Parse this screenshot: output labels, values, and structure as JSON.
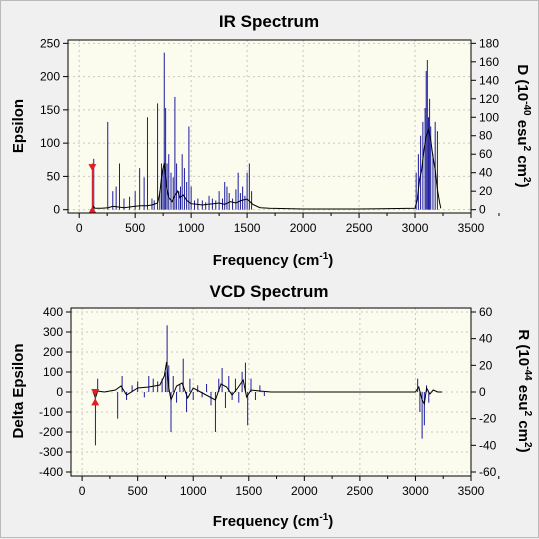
{
  "chart_data": [
    {
      "type": "line",
      "title": "IR Spectrum",
      "xlabel": "Frequency (cm",
      "xlabel_sup": "-1",
      "xlabel_suffix": ")",
      "ylabel": "Epsilon",
      "y2label_parts": [
        "D (10",
        "-40",
        " esu",
        "2",
        " cm",
        "2",
        ")"
      ],
      "xlim": [
        -100,
        3500
      ],
      "ylim": [
        -5,
        255
      ],
      "y2lim": [
        -3.6,
        183.6
      ],
      "xticks": [
        0,
        500,
        1000,
        1500,
        2000,
        2500,
        3000,
        3500
      ],
      "yticks": [
        0,
        50,
        100,
        150,
        200,
        250
      ],
      "y2ticks": [
        0,
        20,
        40,
        60,
        80,
        100,
        120,
        140,
        160,
        180
      ],
      "grid": true,
      "series": [
        {
          "role": "spectrum",
          "color": "#000000",
          "x": [
            100,
            118,
            125,
            132,
            140,
            200,
            260,
            300,
            350,
            400,
            450,
            500,
            550,
            600,
            650,
            700,
            720,
            740,
            760,
            780,
            800,
            830,
            850,
            880,
            900,
            930,
            960,
            1000,
            1050,
            1100,
            1150,
            1200,
            1250,
            1300,
            1350,
            1400,
            1450,
            1500,
            1550,
            1600,
            1620,
            1700,
            2000,
            2500,
            3000,
            3020,
            3040,
            3060,
            3080,
            3100,
            3120,
            3140,
            3160,
            3180,
            3200,
            3220,
            3230
          ],
          "y": [
            0,
            0,
            5,
            4,
            2,
            2,
            3,
            5,
            4,
            3,
            4,
            5,
            6,
            6,
            7,
            10,
            25,
            55,
            70,
            35,
            18,
            12,
            20,
            28,
            18,
            22,
            14,
            9,
            8,
            7,
            8,
            9,
            10,
            8,
            12,
            10,
            14,
            16,
            8,
            4,
            3,
            2,
            1,
            1,
            2,
            15,
            45,
            60,
            90,
            110,
            120,
            105,
            80,
            60,
            30,
            10,
            2
          ]
        },
        {
          "role": "rotational-strength-sticks",
          "color": "#1c1c9e",
          "x": [
            118,
            130,
            255,
            300,
            330,
            360,
            400,
            450,
            500,
            540,
            580,
            610,
            650,
            670,
            700,
            720,
            735,
            748,
            760,
            772,
            785,
            800,
            820,
            840,
            855,
            870,
            890,
            905,
            920,
            940,
            960,
            980,
            1000,
            1030,
            1060,
            1100,
            1130,
            1160,
            1190,
            1220,
            1250,
            1280,
            1300,
            1320,
            1340,
            1370,
            1400,
            1420,
            1440,
            1460,
            1480,
            1500,
            1520,
            1540,
            3010,
            3030,
            3050,
            3070,
            3090,
            3100,
            3110,
            3120,
            3130,
            3140,
            3160,
            3180,
            3200
          ],
          "y": [
            50,
            55,
            95,
            20,
            25,
            50,
            12,
            14,
            20,
            45,
            35,
            100,
            12,
            10,
            115,
            20,
            50,
            45,
            170,
            110,
            50,
            60,
            40,
            35,
            122,
            50,
            20,
            25,
            60,
            45,
            30,
            90,
            25,
            10,
            12,
            10,
            8,
            15,
            12,
            10,
            20,
            12,
            30,
            25,
            18,
            12,
            22,
            40,
            18,
            25,
            15,
            40,
            50,
            20,
            40,
            60,
            80,
            95,
            110,
            150,
            162,
            100,
            120,
            90,
            60,
            95,
            85
          ]
        }
      ],
      "markers": [
        {
          "x": 118,
          "y": 64,
          "color": "#e02020"
        },
        {
          "x": 118,
          "y": -1,
          "color": "#e02020"
        }
      ]
    },
    {
      "type": "line",
      "title": "VCD Spectrum",
      "xlabel": "Frequency (cm",
      "xlabel_sup": "-1",
      "xlabel_suffix": ")",
      "ylabel": "Delta Epsilon",
      "y2label_parts": [
        "R (10",
        "-44",
        " esu",
        "2",
        " cm",
        "2",
        ")"
      ],
      "xlim": [
        -100,
        3500
      ],
      "ylim": [
        -420,
        420
      ],
      "y2lim": [
        -63,
        63
      ],
      "xticks": [
        0,
        500,
        1000,
        1500,
        2000,
        2500,
        3000,
        3500
      ],
      "yticks": [
        -400,
        -300,
        -200,
        -100,
        0,
        100,
        200,
        300,
        400
      ],
      "y2ticks": [
        -60,
        -40,
        -20,
        0,
        20,
        40,
        60
      ],
      "grid": true,
      "series": [
        {
          "role": "spectrum",
          "color": "#000000",
          "x": [
            100,
            120,
            140,
            200,
            300,
            350,
            400,
            500,
            600,
            700,
            740,
            760,
            780,
            800,
            850,
            900,
            950,
            1000,
            1100,
            1200,
            1250,
            1300,
            1350,
            1400,
            1450,
            1480,
            1520,
            1600,
            1700,
            2000,
            2500,
            3000,
            3030,
            3060,
            3080,
            3100,
            3130,
            3160,
            3200,
            3240
          ],
          "y": [
            0,
            -30,
            5,
            0,
            10,
            30,
            -15,
            20,
            25,
            35,
            80,
            150,
            20,
            -40,
            30,
            45,
            -30,
            20,
            -10,
            -40,
            40,
            25,
            -15,
            20,
            60,
            -25,
            10,
            5,
            0,
            0,
            0,
            0,
            25,
            -40,
            -60,
            20,
            -10,
            10,
            0,
            0
          ]
        },
        {
          "role": "rotational-strength-sticks",
          "color": "#1c1c9e",
          "x": [
            120,
            140,
            320,
            360,
            400,
            450,
            500,
            560,
            600,
            640,
            680,
            720,
            750,
            765,
            780,
            800,
            820,
            850,
            880,
            910,
            940,
            970,
            1000,
            1040,
            1080,
            1120,
            1160,
            1200,
            1230,
            1260,
            1290,
            1320,
            1350,
            1380,
            1410,
            1440,
            1470,
            1490,
            1520,
            1560,
            1600,
            1640,
            3020,
            3040,
            3060,
            3080,
            3100,
            3120
          ],
          "y": [
            -40,
            10,
            -20,
            12,
            -6,
            5,
            8,
            -4,
            12,
            10,
            8,
            10,
            15,
            50,
            20,
            -30,
            12,
            -8,
            6,
            25,
            -15,
            10,
            -6,
            5,
            -4,
            6,
            -10,
            -30,
            10,
            18,
            -12,
            12,
            -6,
            10,
            -8,
            15,
            22,
            -25,
            10,
            -6,
            5,
            -3,
            10,
            -15,
            -35,
            -25,
            5,
            -8
          ]
        }
      ],
      "markers": [
        {
          "x": 118,
          "y": 0,
          "color": "#e02020"
        },
        {
          "x": 118,
          "y": -52,
          "color": "#e02020"
        }
      ]
    }
  ]
}
